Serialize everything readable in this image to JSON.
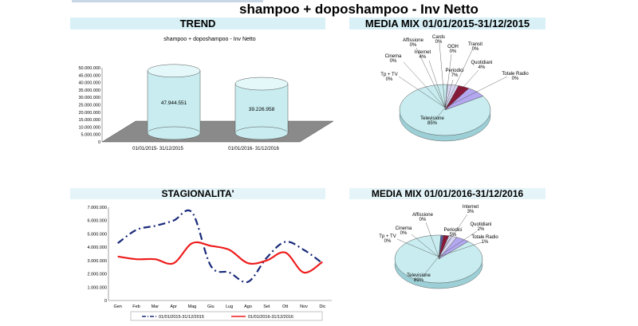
{
  "page": {
    "title": "shampoo + doposhampoo - Inv Netto"
  },
  "sections": {
    "trend": "TREND",
    "mix2015": "MEDIA MIX 01/01/2015-31/12/2015",
    "stagionalita": "STAGIONALITA'",
    "mix2016": "MEDIA MIX 01/01/2016-31/12/2016"
  },
  "colors": {
    "band": "#d8f0f6",
    "cylinder": "#c8ecef",
    "floor": "#8a8a8a",
    "series2015": "#1a2a7a",
    "series2016": "#ee1c1c",
    "pie_main": "#c8ecef",
    "pie_periodici": "#b3a8f0",
    "pie_quotidiani": "#8a1838"
  },
  "chart_data": [
    {
      "type": "bar",
      "title": "shampoo + doposhampoo - Inv Netto",
      "categories": [
        "01/01/2015- 31/12/2015",
        "01/01/2016- 31/12/2016"
      ],
      "values": [
        47944551,
        39226958
      ],
      "value_labels": [
        "47.944.551",
        "39.226.958"
      ],
      "ylim": [
        0,
        50000000
      ],
      "yticks": [
        "0",
        "5.000.000",
        "10.000.000",
        "15.000.000",
        "20.000.000",
        "25.000.000",
        "30.000.000",
        "35.000.000",
        "40.000.000",
        "45.000.000",
        "50.000.000"
      ],
      "style": "3d-cylinder"
    },
    {
      "type": "line",
      "categories": [
        "Gen",
        "Feb",
        "Mar",
        "Apr",
        "Mag",
        "Giu",
        "Lug",
        "Ago",
        "Set",
        "Ott",
        "Nov",
        "Dic"
      ],
      "series": [
        {
          "name": "01/01/2015-31/12/2015",
          "values": [
            4300000,
            5300000,
            5600000,
            6000000,
            6600000,
            2600000,
            2100000,
            1400000,
            3200000,
            4400000,
            3800000,
            2800000
          ]
        },
        {
          "name": "01/01/2016-31/12/2016",
          "values": [
            3300000,
            3100000,
            3100000,
            2800000,
            4300000,
            4100000,
            3800000,
            2800000,
            3000000,
            3600000,
            2100000,
            2900000
          ]
        }
      ],
      "ylim": [
        0,
        7000000
      ],
      "yticks": [
        "0",
        "1.000.000",
        "2.000.000",
        "3.000.000",
        "4.000.000",
        "5.000.000",
        "6.000.000",
        "7.000.000"
      ],
      "legend": "bottom"
    },
    {
      "type": "pie",
      "slices": [
        {
          "name": "Televisione",
          "value": 85,
          "label": "85%"
        },
        {
          "name": "Periodici",
          "value": 7,
          "label": "7%"
        },
        {
          "name": "Quotidiani",
          "value": 4,
          "label": "4%"
        },
        {
          "name": "Internet",
          "value": 4,
          "label": "4%"
        },
        {
          "name": "Affissione",
          "value": 0,
          "label": "0%"
        },
        {
          "name": "Cards",
          "value": 0,
          "label": "0%"
        },
        {
          "name": "OOH",
          "value": 0,
          "label": "0%"
        },
        {
          "name": "Transit",
          "value": 0,
          "label": "0%"
        },
        {
          "name": "Totale Radio",
          "value": 0,
          "label": "0%"
        },
        {
          "name": "Cinema",
          "value": 0,
          "label": "0%"
        },
        {
          "name": "Tp + TV",
          "value": 0,
          "label": "0%"
        }
      ]
    },
    {
      "type": "pie",
      "slices": [
        {
          "name": "Televisione",
          "value": 89,
          "label": "89%"
        },
        {
          "name": "Periodici",
          "value": 5,
          "label": "5%"
        },
        {
          "name": "Internet",
          "value": 3,
          "label": "3%"
        },
        {
          "name": "Quotidiani",
          "value": 2,
          "label": "2%"
        },
        {
          "name": "Totale Radio",
          "value": 1,
          "label": "1%"
        },
        {
          "name": "Affissione",
          "value": 0,
          "label": "0%"
        },
        {
          "name": "Cinema",
          "value": 0,
          "label": "0%"
        },
        {
          "name": "Tp + TV",
          "value": 0,
          "label": "0%"
        }
      ]
    }
  ]
}
